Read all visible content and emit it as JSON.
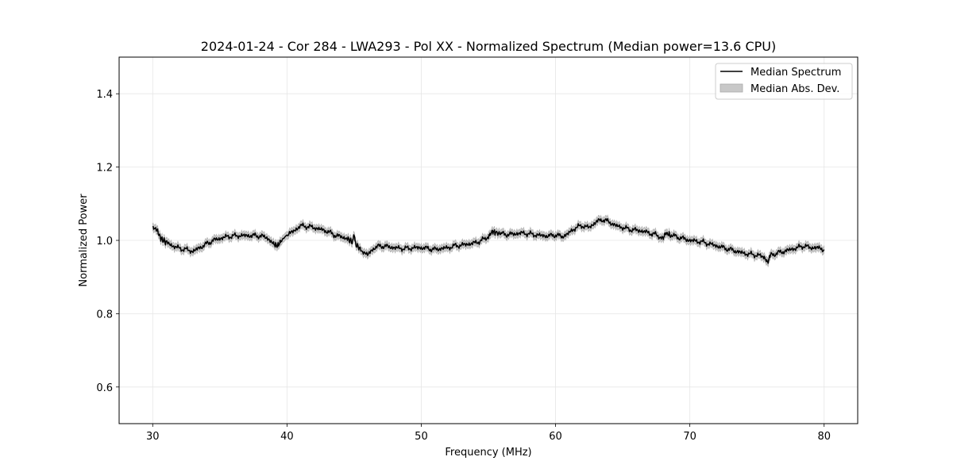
{
  "chart_data": {
    "type": "line",
    "title": "2024-01-24 - Cor 284 - LWA293 - Pol XX - Normalized Spectrum (Median power=13.6 CPU)",
    "xlabel": "Frequency (MHz)",
    "ylabel": "Normalized Power",
    "xlim": [
      27.5,
      82.5
    ],
    "ylim": [
      0.5,
      1.5
    ],
    "xticks": [
      30,
      40,
      50,
      60,
      70,
      80
    ],
    "yticks": [
      0.6,
      0.8,
      1.0,
      1.2,
      1.4
    ],
    "xtick_labels": [
      "30",
      "40",
      "50",
      "60",
      "70",
      "80"
    ],
    "ytick_labels": [
      "0.6",
      "0.8",
      "1.0",
      "1.2",
      "1.4"
    ],
    "grid": true,
    "legend": {
      "placement": "top-right",
      "entries": [
        "Median Spectrum",
        "Median Abs. Dev."
      ]
    },
    "series": [
      {
        "name": "Median Spectrum",
        "color": "#000000",
        "x": [
          30.0,
          30.3,
          30.6,
          31.0,
          31.5,
          32.0,
          32.5,
          33.0,
          33.5,
          34.0,
          34.5,
          35.0,
          35.5,
          36.0,
          36.5,
          37.0,
          37.5,
          38.0,
          38.5,
          39.0,
          39.3,
          39.6,
          40.0,
          40.5,
          41.0,
          41.5,
          42.0,
          42.5,
          43.0,
          43.5,
          44.0,
          44.5,
          44.9,
          45.0,
          45.1,
          45.5,
          46.0,
          46.5,
          47.0,
          47.5,
          48.0,
          48.5,
          49.0,
          49.5,
          50.0,
          50.5,
          51.0,
          51.5,
          52.0,
          52.5,
          53.0,
          53.5,
          54.0,
          54.5,
          55.0,
          55.3,
          55.6,
          56.0,
          56.5,
          57.0,
          57.5,
          58.0,
          58.5,
          59.0,
          59.5,
          60.0,
          60.5,
          61.0,
          61.5,
          62.0,
          62.5,
          63.0,
          63.5,
          64.0,
          64.5,
          65.0,
          65.5,
          66.0,
          66.5,
          67.0,
          67.5,
          68.0,
          68.2,
          68.5,
          69.0,
          69.5,
          70.0,
          70.5,
          71.0,
          71.5,
          72.0,
          72.5,
          73.0,
          73.5,
          74.0,
          74.5,
          75.0,
          75.5,
          75.8,
          76.0,
          76.5,
          77.0,
          77.5,
          78.0,
          78.5,
          79.0,
          79.5,
          80.0
        ],
        "y": [
          1.035,
          1.03,
          1.005,
          0.995,
          0.985,
          0.978,
          0.975,
          0.97,
          0.98,
          0.99,
          1.0,
          1.005,
          1.01,
          1.012,
          1.013,
          1.013,
          1.013,
          1.012,
          1.008,
          0.99,
          0.985,
          1.0,
          1.015,
          1.025,
          1.04,
          1.038,
          1.035,
          1.03,
          1.025,
          1.015,
          1.01,
          1.005,
          0.995,
          1.02,
          0.99,
          0.975,
          0.96,
          0.98,
          0.985,
          0.983,
          0.98,
          0.978,
          0.978,
          0.98,
          0.98,
          0.978,
          0.975,
          0.978,
          0.98,
          0.985,
          0.987,
          0.99,
          0.993,
          1.0,
          1.01,
          1.025,
          1.02,
          1.018,
          1.016,
          1.018,
          1.02,
          1.018,
          1.015,
          1.013,
          1.012,
          1.015,
          1.01,
          1.02,
          1.035,
          1.04,
          1.035,
          1.05,
          1.057,
          1.05,
          1.04,
          1.035,
          1.03,
          1.028,
          1.025,
          1.02,
          1.015,
          1.005,
          1.02,
          1.015,
          1.01,
          1.005,
          1.0,
          0.998,
          0.995,
          0.99,
          0.985,
          0.98,
          0.975,
          0.97,
          0.965,
          0.962,
          0.96,
          0.955,
          0.94,
          0.96,
          0.965,
          0.97,
          0.975,
          0.98,
          0.985,
          0.98,
          0.98,
          0.975
        ]
      },
      {
        "name": "Median Abs. Dev.",
        "color": "#c8c8c8",
        "type": "band",
        "half_width": 0.01
      }
    ]
  }
}
